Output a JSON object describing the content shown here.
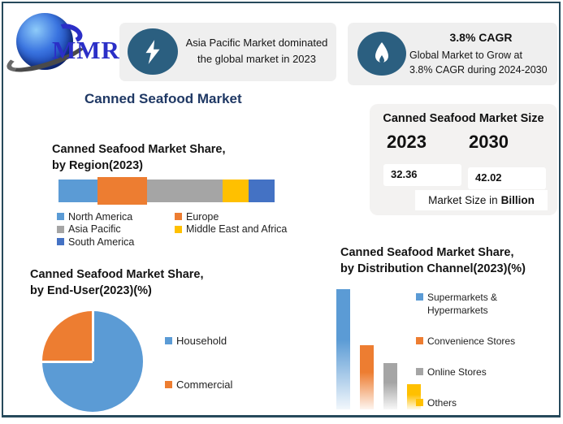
{
  "logo": {
    "text": "MMR"
  },
  "header": {
    "banner1": {
      "line1": "Asia Pacific Market dominated",
      "line2": "the global market in 2023"
    },
    "banner2": {
      "title": "3.8% CAGR",
      "line1": "Global Market to Grow at",
      "line2": "3.8% CAGR during 2024-2030"
    }
  },
  "page_title": "Canned Seafood Market",
  "colors": {
    "accent_navy": "#1F3864",
    "banner_bg": "#EFEFEF",
    "icon_circle": "#2B5F80",
    "card_bg": "#F3F2F1",
    "frame_border": "#26495B",
    "logo_blue": "#2B2FC7"
  },
  "chart_data": [
    {
      "id": "region_share",
      "type": "bar",
      "variant": "stacked-horizontal",
      "title_line1": "Canned Seafood Market Share,",
      "title_line2": "by Region(2023)",
      "unit": "%",
      "legend_order": [
        0,
        2,
        4,
        1,
        3
      ],
      "segments": [
        {
          "label": "North America",
          "value": 18,
          "color": "#5B9BD5",
          "emphasis": false
        },
        {
          "label": "Europe",
          "value": 23,
          "color": "#ED7D31",
          "emphasis": true
        },
        {
          "label": "Asia Pacific",
          "value": 35,
          "color": "#A5A5A5",
          "emphasis": false
        },
        {
          "label": "Middle East and Africa",
          "value": 12,
          "color": "#FFC000",
          "emphasis": false
        },
        {
          "label": "South America",
          "value": 12,
          "color": "#4472C4",
          "emphasis": false
        }
      ]
    },
    {
      "id": "end_user_share",
      "type": "pie",
      "title_line1": "Canned Seafood Market Share,",
      "title_line2": "by End-User(2023)(%)",
      "unit": "%",
      "slices": [
        {
          "label": "Household",
          "value": 75,
          "color": "#5B9BD5"
        },
        {
          "label": "Commercial",
          "value": 25,
          "color": "#ED7D31"
        }
      ]
    },
    {
      "id": "distribution_share",
      "type": "bar",
      "variant": "vertical-gradient",
      "title_line1": "Canned Seafood Market Share,",
      "title_line2": "by Distribution Channel(2023)(%)",
      "unit": "%",
      "bars": [
        {
          "label": "Supermarkets & Hypermarkets",
          "value": 47,
          "color": "#5B9BD5"
        },
        {
          "label": "Convenience Stores",
          "value": 25,
          "color": "#ED7D31"
        },
        {
          "label": "Online Stores",
          "value": 18,
          "color": "#A5A5A5"
        },
        {
          "label": "Others",
          "value": 10,
          "color": "#FFC000"
        }
      ]
    },
    {
      "id": "market_size",
      "type": "table",
      "title": "Canned Seafood Market Size",
      "columns": [
        "2023",
        "2030"
      ],
      "values": [
        "32.36",
        "42.02"
      ],
      "note_prefix": "Market Size in",
      "note_bold": "Billion"
    }
  ]
}
